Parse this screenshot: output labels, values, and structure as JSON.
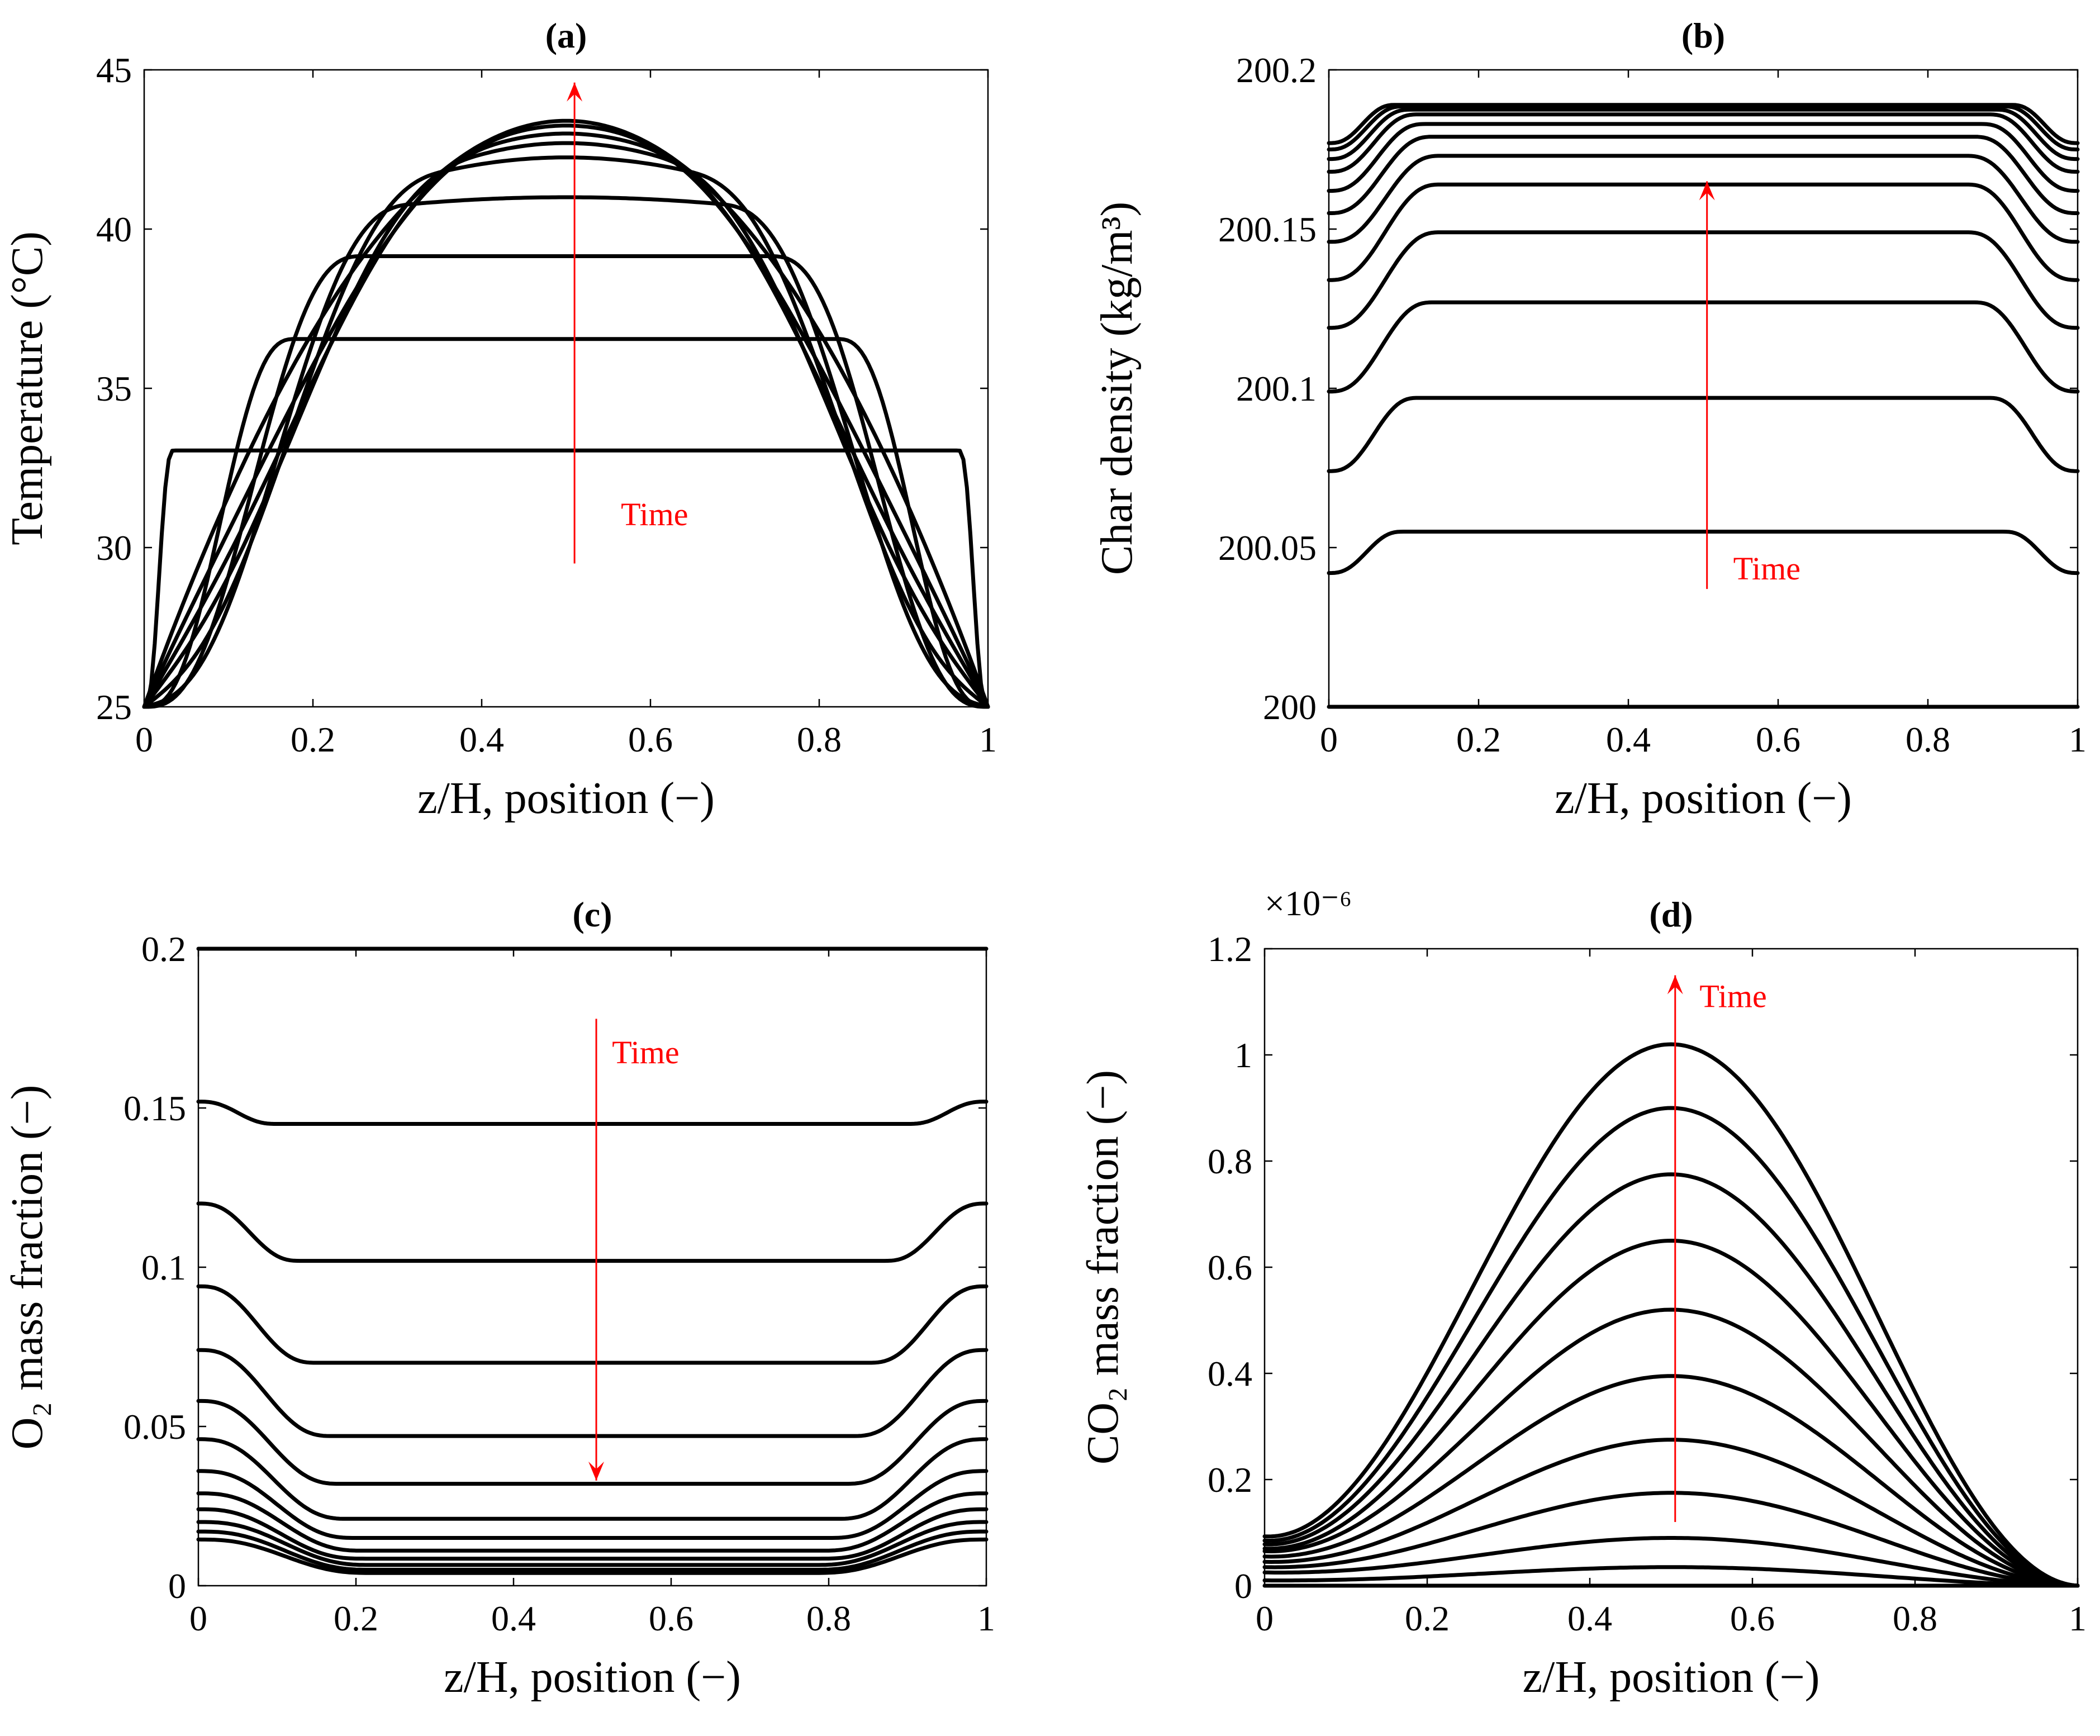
{
  "figure": {
    "annotation_color": "#ff0000",
    "line_color": "#000000"
  },
  "chart_data": [
    {
      "id": "a",
      "type": "line",
      "title": "(a)",
      "xlabel": "z/H, position (−)",
      "ylabel": "Temperature (°C)",
      "xlim": [
        0,
        1
      ],
      "ylim": [
        25,
        45
      ],
      "xticks": [
        0,
        0.2,
        0.4,
        0.6,
        0.8,
        1
      ],
      "xtick_labels": [
        "0",
        "0.2",
        "0.4",
        "0.6",
        "0.8",
        "1"
      ],
      "yticks": [
        25,
        30,
        35,
        40,
        45
      ],
      "ytick_labels": [
        "25",
        "30",
        "35",
        "40",
        "45"
      ],
      "curve_model": "plateau",
      "series": [
        {
          "name": "t1",
          "plateau": 33.05,
          "boundary": 25.0,
          "width": 0.035
        },
        {
          "name": "t2",
          "plateau": 36.55,
          "boundary": 25.0,
          "width": 0.18
        },
        {
          "name": "t3",
          "plateau": 39.15,
          "boundary": 25.0,
          "width": 0.26
        },
        {
          "name": "t4",
          "plateau": 41.0,
          "boundary": 25.0,
          "width": 0.32
        },
        {
          "name": "t5",
          "plateau": 42.25,
          "boundary": 25.0,
          "width": 0.36
        },
        {
          "name": "t6",
          "plateau": 42.7,
          "boundary": 25.0,
          "width": 0.4
        },
        {
          "name": "t7",
          "plateau": 43.0,
          "boundary": 25.0,
          "width": 0.43
        },
        {
          "name": "t8",
          "plateau": 43.25,
          "boundary": 25.0,
          "width": 0.46
        },
        {
          "name": "t9",
          "plateau": 43.4,
          "boundary": 25.0,
          "width": 0.5
        }
      ],
      "annotation": {
        "text": "Time",
        "direction": "up",
        "x": 0.51,
        "y_from": 29.5,
        "y_to": 44.6,
        "text_x": 0.565,
        "text_y": 30.7
      }
    },
    {
      "id": "b",
      "type": "line",
      "title": "(b)",
      "xlabel": "z/H, position (−)",
      "ylabel": "Char density (kg/m³)",
      "xlim": [
        0,
        1
      ],
      "ylim": [
        200,
        200.2
      ],
      "xticks": [
        0,
        0.2,
        0.4,
        0.6,
        0.8,
        1
      ],
      "xtick_labels": [
        "0",
        "0.2",
        "0.4",
        "0.6",
        "0.8",
        "1"
      ],
      "yticks": [
        200,
        200.05,
        200.1,
        200.15,
        200.2
      ],
      "ytick_labels": [
        "200",
        "200.05",
        "200.1",
        "200.15",
        "200.2"
      ],
      "curve_model": "plateau",
      "series": [
        {
          "name": "t0",
          "plateau": 200.0,
          "boundary": 200.0,
          "width": 0.1
        },
        {
          "name": "t1",
          "plateau": 200.055,
          "boundary": 200.042,
          "width": 0.1
        },
        {
          "name": "t2",
          "plateau": 200.097,
          "boundary": 200.074,
          "width": 0.12
        },
        {
          "name": "t3",
          "plateau": 200.127,
          "boundary": 200.099,
          "width": 0.14
        },
        {
          "name": "t4",
          "plateau": 200.149,
          "boundary": 200.119,
          "width": 0.15
        },
        {
          "name": "t5",
          "plateau": 200.164,
          "boundary": 200.134,
          "width": 0.15
        },
        {
          "name": "t6",
          "plateau": 200.173,
          "boundary": 200.146,
          "width": 0.15
        },
        {
          "name": "t7",
          "plateau": 200.179,
          "boundary": 200.155,
          "width": 0.14
        },
        {
          "name": "t8",
          "plateau": 200.183,
          "boundary": 200.162,
          "width": 0.13
        },
        {
          "name": "t9",
          "plateau": 200.186,
          "boundary": 200.168,
          "width": 0.12
        },
        {
          "name": "t10",
          "plateau": 200.1875,
          "boundary": 200.172,
          "width": 0.11
        },
        {
          "name": "t11",
          "plateau": 200.1885,
          "boundary": 200.175,
          "width": 0.1
        },
        {
          "name": "t12",
          "plateau": 200.189,
          "boundary": 200.177,
          "width": 0.09
        }
      ],
      "annotation": {
        "text": "Time",
        "direction": "up",
        "x": 0.505,
        "y_from": 200.037,
        "y_to": 200.165,
        "text_x": 0.54,
        "text_y": 200.04
      }
    },
    {
      "id": "c",
      "type": "line",
      "title": "(c)",
      "xlabel": "z/H, position (−)",
      "ylabel": "O₂ mass fraction (−)",
      "xlim": [
        0,
        1
      ],
      "ylim": [
        0,
        0.2
      ],
      "xticks": [
        0,
        0.2,
        0.4,
        0.6,
        0.8,
        1
      ],
      "xtick_labels": [
        "0",
        "0.2",
        "0.4",
        "0.6",
        "0.8",
        "1"
      ],
      "yticks": [
        0,
        0.05,
        0.1,
        0.15,
        0.2
      ],
      "ytick_labels": [
        "0",
        "0.05",
        "0.1",
        "0.15",
        "0.2"
      ],
      "curve_model": "plateau",
      "series": [
        {
          "name": "t0",
          "plateau": 0.2,
          "boundary": 0.2,
          "width": 0.1
        },
        {
          "name": "t1",
          "plateau": 0.145,
          "boundary": 0.152,
          "width": 0.1
        },
        {
          "name": "t2",
          "plateau": 0.102,
          "boundary": 0.12,
          "width": 0.13
        },
        {
          "name": "t3",
          "plateau": 0.07,
          "boundary": 0.094,
          "width": 0.15
        },
        {
          "name": "t4",
          "plateau": 0.047,
          "boundary": 0.074,
          "width": 0.17
        },
        {
          "name": "t5",
          "plateau": 0.032,
          "boundary": 0.058,
          "width": 0.18
        },
        {
          "name": "t6",
          "plateau": 0.021,
          "boundary": 0.046,
          "width": 0.19
        },
        {
          "name": "t7",
          "plateau": 0.015,
          "boundary": 0.036,
          "width": 0.2
        },
        {
          "name": "t8",
          "plateau": 0.011,
          "boundary": 0.029,
          "width": 0.21
        },
        {
          "name": "t9",
          "plateau": 0.0085,
          "boundary": 0.024,
          "width": 0.21
        },
        {
          "name": "t10",
          "plateau": 0.0065,
          "boundary": 0.02,
          "width": 0.22
        },
        {
          "name": "t11",
          "plateau": 0.005,
          "boundary": 0.017,
          "width": 0.22
        },
        {
          "name": "t12",
          "plateau": 0.004,
          "boundary": 0.0145,
          "width": 0.22
        }
      ],
      "annotation": {
        "text": "Time",
        "direction": "down",
        "x": 0.505,
        "y_from": 0.178,
        "y_to": 0.033,
        "text_x": 0.525,
        "text_y": 0.164
      }
    },
    {
      "id": "d",
      "type": "line",
      "title": "(d)",
      "xlabel": "z/H, position (−)",
      "ylabel": "CO₂ mass fraction (−)",
      "exponent_label": "×10⁻⁶",
      "xlim": [
        0,
        1
      ],
      "ylim": [
        0,
        1.2
      ],
      "xticks": [
        0,
        0.2,
        0.4,
        0.6,
        0.8,
        1
      ],
      "xtick_labels": [
        "0",
        "0.2",
        "0.4",
        "0.6",
        "0.8",
        "1"
      ],
      "yticks": [
        0,
        0.2,
        0.4,
        0.6,
        0.8,
        1,
        1.2
      ],
      "ytick_labels": [
        "0",
        "0.2",
        "0.4",
        "0.6",
        "0.8",
        "1",
        "1.2"
      ],
      "curve_model": "bell",
      "series": [
        {
          "name": "t0",
          "peak": 0.0,
          "left": 0.0,
          "right": 0.0
        },
        {
          "name": "t1",
          "peak": 0.035,
          "left": 0.01,
          "right": 0.0
        },
        {
          "name": "t2",
          "peak": 0.09,
          "left": 0.025,
          "right": 0.0
        },
        {
          "name": "t3",
          "peak": 0.175,
          "left": 0.035,
          "right": 0.0
        },
        {
          "name": "t4",
          "peak": 0.275,
          "left": 0.045,
          "right": 0.0
        },
        {
          "name": "t5",
          "peak": 0.395,
          "left": 0.055,
          "right": 0.0
        },
        {
          "name": "t6",
          "peak": 0.52,
          "left": 0.065,
          "right": 0.0
        },
        {
          "name": "t7",
          "peak": 0.65,
          "left": 0.07,
          "right": 0.0
        },
        {
          "name": "t8",
          "peak": 0.775,
          "left": 0.078,
          "right": 0.0
        },
        {
          "name": "t9",
          "peak": 0.9,
          "left": 0.085,
          "right": 0.0
        },
        {
          "name": "t10",
          "peak": 1.02,
          "left": 0.093,
          "right": 0.0
        }
      ],
      "annotation": {
        "text": "Time",
        "direction": "up",
        "x": 0.505,
        "y_from": 0.12,
        "y_to": 1.15,
        "text_x": 0.535,
        "text_y": 1.09
      }
    }
  ]
}
